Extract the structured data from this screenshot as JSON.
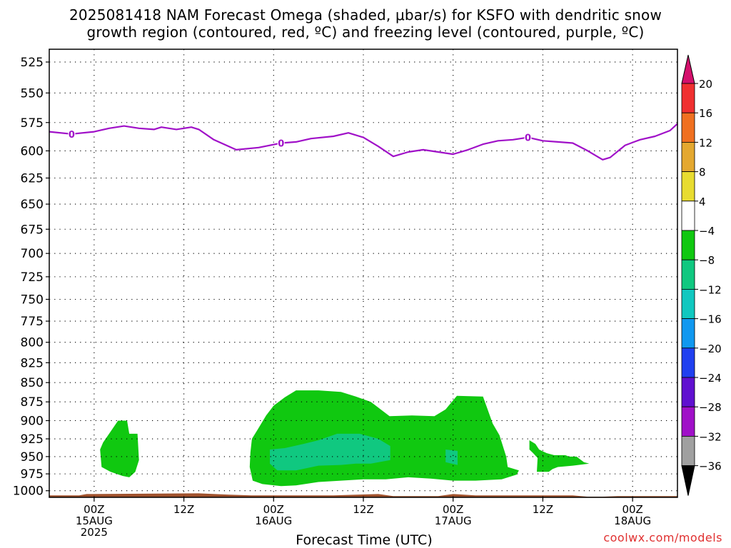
{
  "title_line1": "2025081418 NAM Forecast Omega (shaded, μbar/s) for KSFO with dendritic snow",
  "title_line2": "growth region (contoured, red, ºC) and freezing level (contoured, purple, ºC)",
  "credit": "coolwx.com/models",
  "chart_data": {
    "type": "heatmap",
    "xlabel": "Forecast Time (UTC)",
    "ylabel": "",
    "x_units": "hours since 2025-08-14 18Z",
    "xlim": [
      0,
      84
    ],
    "ylim": [
      1010,
      515
    ],
    "y_ticks": [
      525,
      550,
      575,
      600,
      625,
      650,
      675,
      700,
      725,
      750,
      775,
      800,
      825,
      850,
      875,
      900,
      925,
      950,
      975,
      1000
    ],
    "x_ticks": [
      {
        "x": 6,
        "lines": [
          "00Z",
          "15AUG",
          "2025"
        ]
      },
      {
        "x": 18,
        "lines": [
          "12Z"
        ]
      },
      {
        "x": 30,
        "lines": [
          "00Z",
          "16AUG"
        ]
      },
      {
        "x": 42,
        "lines": [
          "12Z"
        ]
      },
      {
        "x": 54,
        "lines": [
          "00Z",
          "17AUG"
        ]
      },
      {
        "x": 66,
        "lines": [
          "12Z"
        ]
      },
      {
        "x": 78,
        "lines": [
          "00Z",
          "18AUG"
        ]
      }
    ],
    "grid": true,
    "colorbar": {
      "labels": [
        "20",
        "16",
        "12",
        "8",
        "4",
        "−4",
        "−8",
        "−12",
        "−16",
        "−20",
        "−24",
        "−28",
        "−32",
        "−36"
      ],
      "top_color": "#d4106c",
      "colors": [
        "#f03030",
        "#f07020",
        "#e4a830",
        "#e8dc30",
        "#ffffff",
        "#10c810",
        "#10c880",
        "#10c8c0",
        "#1098f0",
        "#2040f0",
        "#6010d0",
        "#a010c8",
        "#a0a0a0"
      ],
      "bottom_color": "#000000"
    },
    "freezing_level": {
      "label": "0",
      "color": "#a010c8",
      "label_x": [
        3,
        31,
        64
      ],
      "points": [
        [
          0,
          583
        ],
        [
          3,
          585
        ],
        [
          6,
          583
        ],
        [
          8,
          580
        ],
        [
          10,
          578
        ],
        [
          12,
          580
        ],
        [
          14,
          581
        ],
        [
          15,
          579
        ],
        [
          17,
          581
        ],
        [
          19,
          579
        ],
        [
          20,
          581
        ],
        [
          22,
          590
        ],
        [
          25,
          599
        ],
        [
          28,
          597
        ],
        [
          31,
          593
        ],
        [
          33,
          592
        ],
        [
          35,
          589
        ],
        [
          38,
          587
        ],
        [
          40,
          584
        ],
        [
          42,
          588
        ],
        [
          44,
          596
        ],
        [
          46,
          605
        ],
        [
          48,
          601
        ],
        [
          50,
          599
        ],
        [
          52,
          601
        ],
        [
          54,
          603
        ],
        [
          56,
          599
        ],
        [
          58,
          594
        ],
        [
          60,
          591
        ],
        [
          62,
          590
        ],
        [
          64,
          588
        ],
        [
          66,
          591
        ],
        [
          68,
          592
        ],
        [
          70,
          593
        ],
        [
          72,
          600
        ],
        [
          74,
          608
        ],
        [
          75,
          606
        ],
        [
          77,
          595
        ],
        [
          79,
          590
        ],
        [
          81,
          587
        ],
        [
          83,
          582
        ],
        [
          84,
          576
        ]
      ]
    },
    "omega_regions": [
      {
        "name": "green-1",
        "color": "#10c810",
        "polygon": [
          [
            6.8,
            940
          ],
          [
            7.2,
            930
          ],
          [
            8.2,
            915
          ],
          [
            9.2,
            900
          ],
          [
            10.4,
            900
          ],
          [
            10.7,
            918
          ],
          [
            11.8,
            918
          ],
          [
            12.0,
            955
          ],
          [
            11.5,
            972
          ],
          [
            10.7,
            980
          ],
          [
            9.8,
            978
          ],
          [
            8.2,
            972
          ],
          [
            7.0,
            965
          ]
        ]
      },
      {
        "name": "green-2",
        "color": "#10c810",
        "polygon": [
          [
            26.8,
            965
          ],
          [
            26.9,
            944
          ],
          [
            27.1,
            925
          ],
          [
            28.0,
            910
          ],
          [
            29.0,
            893
          ],
          [
            30.0,
            880
          ],
          [
            31.5,
            869
          ],
          [
            33.0,
            860
          ],
          [
            36.0,
            860
          ],
          [
            39.0,
            862
          ],
          [
            41.0,
            868
          ],
          [
            43.0,
            875
          ],
          [
            45.5,
            894
          ],
          [
            48.5,
            893
          ],
          [
            51.5,
            894
          ],
          [
            53.0,
            885
          ],
          [
            54.5,
            867
          ],
          [
            58.0,
            868
          ],
          [
            59.3,
            904
          ],
          [
            60.2,
            920
          ],
          [
            61.1,
            950
          ],
          [
            61.3,
            965
          ],
          [
            62.8,
            970
          ],
          [
            62.5,
            976
          ],
          [
            60.5,
            983
          ],
          [
            57.0,
            985
          ],
          [
            54.0,
            985
          ],
          [
            51.0,
            982
          ],
          [
            48.0,
            980
          ],
          [
            45.0,
            983
          ],
          [
            42.0,
            983
          ],
          [
            39.0,
            985
          ],
          [
            36.0,
            987
          ],
          [
            33.0,
            992
          ],
          [
            31.0,
            993
          ],
          [
            28.5,
            990
          ],
          [
            27.2,
            985
          ]
        ]
      },
      {
        "name": "teal-2",
        "color": "#10c880",
        "polygon": [
          [
            29.5,
            940
          ],
          [
            31.5,
            938
          ],
          [
            34.0,
            932
          ],
          [
            36.0,
            927
          ],
          [
            38.5,
            918
          ],
          [
            41.5,
            918
          ],
          [
            44.0,
            925
          ],
          [
            45.6,
            935
          ],
          [
            45.6,
            955
          ],
          [
            43.0,
            960
          ],
          [
            41.0,
            960
          ],
          [
            39.0,
            962
          ],
          [
            36.0,
            963
          ],
          [
            33.0,
            970
          ],
          [
            30.5,
            970
          ],
          [
            29.5,
            960
          ]
        ]
      },
      {
        "name": "teal-3",
        "color": "#10c880",
        "polygon": [
          [
            53.0,
            940
          ],
          [
            54.6,
            942
          ],
          [
            54.6,
            962
          ],
          [
            53.0,
            958
          ]
        ]
      },
      {
        "name": "green-3",
        "color": "#10c810",
        "polygon": [
          [
            64.2,
            927
          ],
          [
            65.0,
            932
          ],
          [
            65.5,
            940
          ],
          [
            66.5,
            945
          ],
          [
            67.5,
            948
          ],
          [
            69.0,
            948
          ],
          [
            69.5,
            950
          ],
          [
            70.5,
            950
          ],
          [
            71.5,
            958
          ],
          [
            72.2,
            960
          ],
          [
            70.0,
            963
          ],
          [
            68.0,
            965
          ],
          [
            67.3,
            968
          ],
          [
            66.8,
            972
          ],
          [
            65.2,
            972
          ],
          [
            65.3,
            952
          ],
          [
            64.7,
            945
          ],
          [
            64.2,
            940
          ]
        ]
      }
    ],
    "ground": {
      "color": "#a0522d",
      "bottom": 1010,
      "top_points": [
        [
          0,
          1007
        ],
        [
          4,
          1007
        ],
        [
          5,
          1005
        ],
        [
          20,
          1004
        ],
        [
          24,
          1006
        ],
        [
          27,
          1007
        ],
        [
          38,
          1007
        ],
        [
          44,
          1005
        ],
        [
          46,
          1008
        ],
        [
          52,
          1008
        ],
        [
          54,
          1005
        ],
        [
          57,
          1007
        ],
        [
          70,
          1007
        ],
        [
          72,
          1009
        ],
        [
          74,
          1009
        ],
        [
          76,
          1008
        ],
        [
          78,
          1008
        ],
        [
          84,
          1008
        ]
      ]
    }
  }
}
